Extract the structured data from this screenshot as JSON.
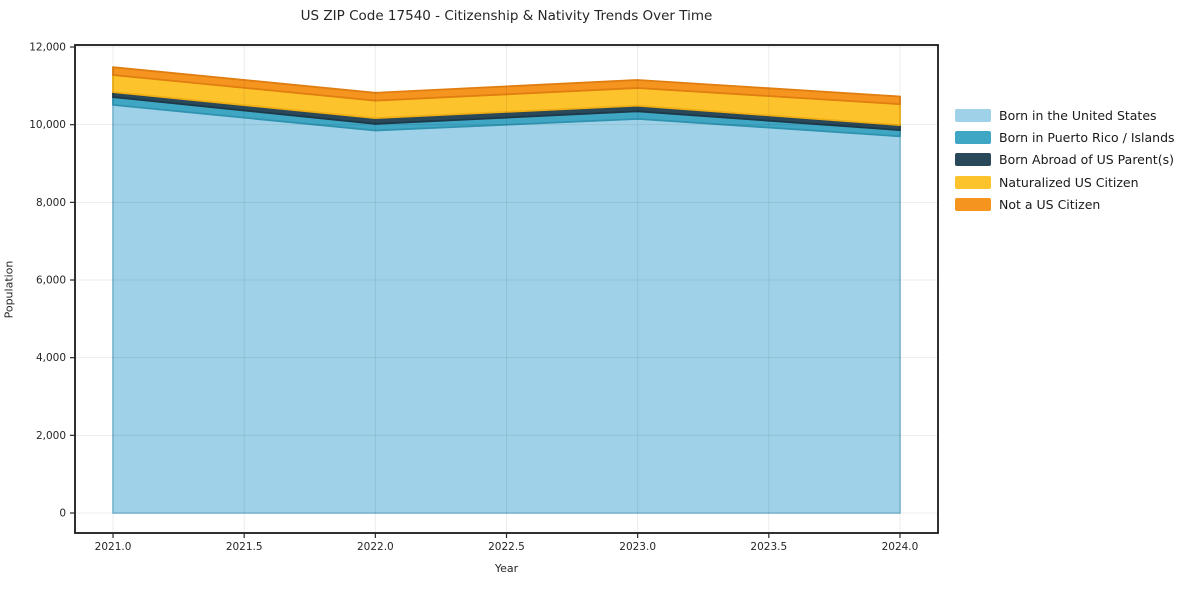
{
  "chart_data": {
    "type": "area",
    "stacked": true,
    "title": "US ZIP Code 17540 - Citizenship & Nativity Trends Over Time",
    "xlabel": "Year",
    "ylabel": "Population",
    "x": [
      2021,
      2022,
      2023,
      2024
    ],
    "series": [
      {
        "name": "Born in the United States",
        "color": "#9fd2e8",
        "edge": "#85c0da",
        "values": [
          10510,
          9850,
          10150,
          9700
        ]
      },
      {
        "name": "Born in Puerto Rico / Islands",
        "color": "#3fa6c3",
        "edge": "#2f93b0",
        "values": [
          200,
          170,
          195,
          160
        ]
      },
      {
        "name": "Born Abroad of US Parent(s)",
        "color": "#29485a",
        "edge": "#1d3847",
        "values": [
          130,
          150,
          145,
          130
        ]
      },
      {
        "name": "Naturalized US Citizen",
        "color": "#fdc32d",
        "edge": "#f0af14",
        "values": [
          440,
          450,
          455,
          540
        ]
      },
      {
        "name": "Not a US Citizen",
        "color": "#f5941f",
        "edge": "#e07e10",
        "values": [
          200,
          200,
          205,
          195
        ]
      }
    ],
    "xlim": [
      2020.855,
      2024.145
    ],
    "ylim": [
      -515,
      12052
    ],
    "xticks": [
      2021.0,
      2021.5,
      2022.0,
      2022.5,
      2023.0,
      2023.5,
      2024.0
    ],
    "xtick_labels": [
      "2021.0",
      "2021.5",
      "2022.0",
      "2022.5",
      "2023.0",
      "2023.5",
      "2024.0"
    ],
    "yticks": [
      0,
      2000,
      4000,
      6000,
      8000,
      10000,
      12000
    ],
    "ytick_labels": [
      "0",
      "2,000",
      "4,000",
      "6,000",
      "8,000",
      "10,000",
      "12,000"
    ],
    "grid": true,
    "legend_position": "right",
    "colors": {
      "spine": "#1a1a1a",
      "tick": "#262626",
      "tick_label": "#262626",
      "grid_overlay": "rgba(0,0,0,0.075)",
      "background": "#ffffff"
    }
  }
}
